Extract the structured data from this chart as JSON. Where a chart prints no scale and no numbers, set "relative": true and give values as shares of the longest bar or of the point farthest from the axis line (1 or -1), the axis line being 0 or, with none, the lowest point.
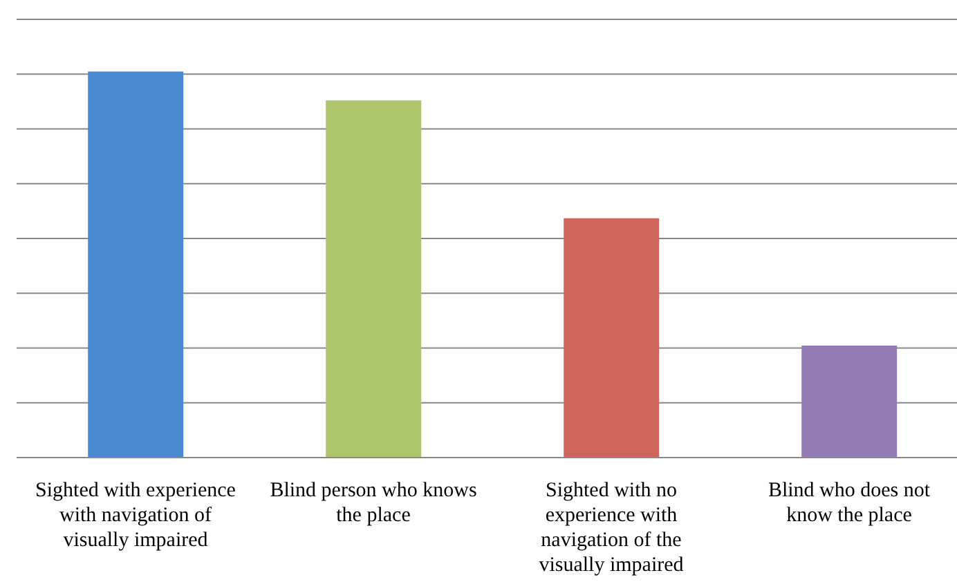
{
  "chart_data": {
    "type": "bar",
    "relative": true,
    "grid": "y",
    "categories": [
      "Sighted with experience with navigation of visually impaired",
      "Blind person who knows the place",
      "Sighted with no experience with navigation of the visually impaired",
      "Blind who does not know the place"
    ],
    "values": [
      1,
      0.925,
      0.62,
      0.29
    ],
    "colors": [
      "#4a88cf",
      "#adc56c",
      "#cd645e",
      "#937cb4"
    ]
  }
}
